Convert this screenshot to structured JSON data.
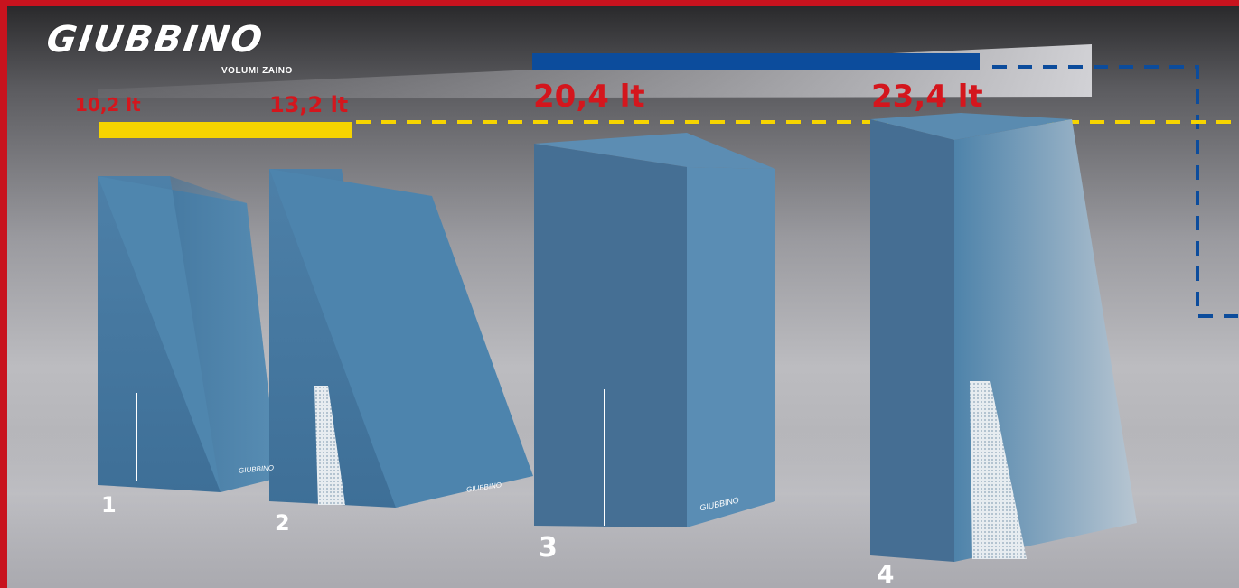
{
  "brand": {
    "logo_text": "GIUBBINO",
    "subtitle": "VOLUMI ZAINO"
  },
  "volumes": [
    {
      "label": "10,2 lt",
      "liters": 10.2
    },
    {
      "label": "13,2 lt",
      "liters": 13.2
    },
    {
      "label": "20,4 lt",
      "liters": 20.4
    },
    {
      "label": "23,4 lt",
      "liters": 23.4
    }
  ],
  "shapes": [
    {
      "number": "1",
      "brand_mark": "GIUBBINO"
    },
    {
      "number": "2",
      "brand_mark": "GIUBBINO"
    },
    {
      "number": "3",
      "brand_mark": "GIUBBINO"
    },
    {
      "number": "4",
      "brand_mark": ""
    }
  ],
  "colors": {
    "frame": "#c8131e",
    "label_red": "#d4161d",
    "bar_yellow": "#f6d400",
    "bar_blue": "#0c4c9c",
    "volume_blue": "#4a7ea6"
  }
}
